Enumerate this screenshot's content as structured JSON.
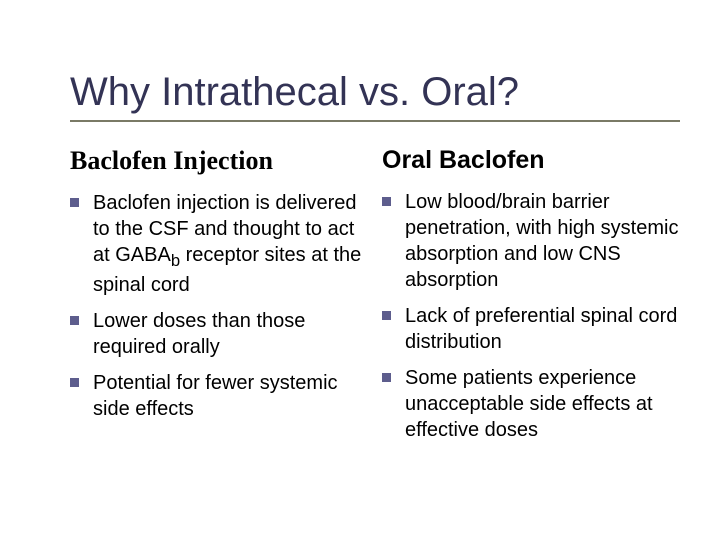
{
  "title": "Why Intrathecal vs. Oral?",
  "title_color": "#333355",
  "title_underline_color": "#7a7a66",
  "bullet_color": "#5d5d8d",
  "text_color": "#000000",
  "left": {
    "heading": "Baclofen Injection",
    "bullets": [
      "Baclofen injection is delivered to the CSF and thought to act at GABA_b receptor sites at the spinal cord",
      "Lower doses than those required orally",
      "Potential for fewer systemic side effects"
    ]
  },
  "right": {
    "heading": "Oral Baclofen",
    "bullets": [
      "Low blood/brain barrier penetration, with high systemic absorption and low CNS absorption",
      "Lack of preferential spinal cord distribution",
      "Some patients experience unacceptable side effects at effective doses"
    ]
  }
}
